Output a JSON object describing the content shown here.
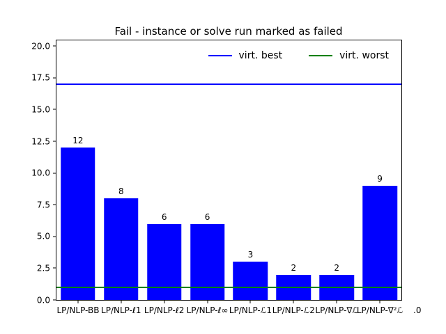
{
  "title": "Fail - instance or solve run marked as failed",
  "legend": {
    "items": [
      {
        "label": "virt. best",
        "color": "#0000ff"
      },
      {
        "label": "virt. worst",
        "color": "#008000"
      }
    ]
  },
  "chart_data": {
    "type": "bar",
    "title": "Fail - instance or solve run marked as failed",
    "categories": [
      "LP/NLP-BB",
      "LP/NLP-ℓ1",
      "LP/NLP-ℓ2",
      "LP/NLP-ℓ∞",
      "LP/NLP-ℒ1",
      "LP/NLP-ℒ2",
      "LP/NLP-∇ℒ",
      "LP/NLP-∇²ℒ"
    ],
    "values": [
      12,
      8,
      6,
      6,
      3,
      2,
      2,
      9
    ],
    "value_labels": [
      "12",
      "8",
      "6",
      "6",
      "3",
      "2",
      "2",
      "9"
    ],
    "bar_color": "#0000ff",
    "hlines": [
      {
        "name": "virt. best",
        "value": 17,
        "color": "#0000ff"
      },
      {
        "name": "virt. worst",
        "value": 1,
        "color": "#008000"
      }
    ],
    "ylim": [
      0,
      20.45
    ],
    "y_ticks": [
      0.0,
      2.5,
      5.0,
      7.5,
      10.0,
      12.5,
      15.0,
      17.5,
      20.0
    ],
    "y_tick_labels": [
      "0.0",
      "2.5",
      "5.0",
      "7.5",
      "10.0",
      "12.5",
      "15.0",
      "17.5",
      "20.0"
    ],
    "x_overflow_text": ".0",
    "xlabel": "",
    "ylabel": "",
    "grid": false,
    "legend_position": "upper right inside"
  }
}
